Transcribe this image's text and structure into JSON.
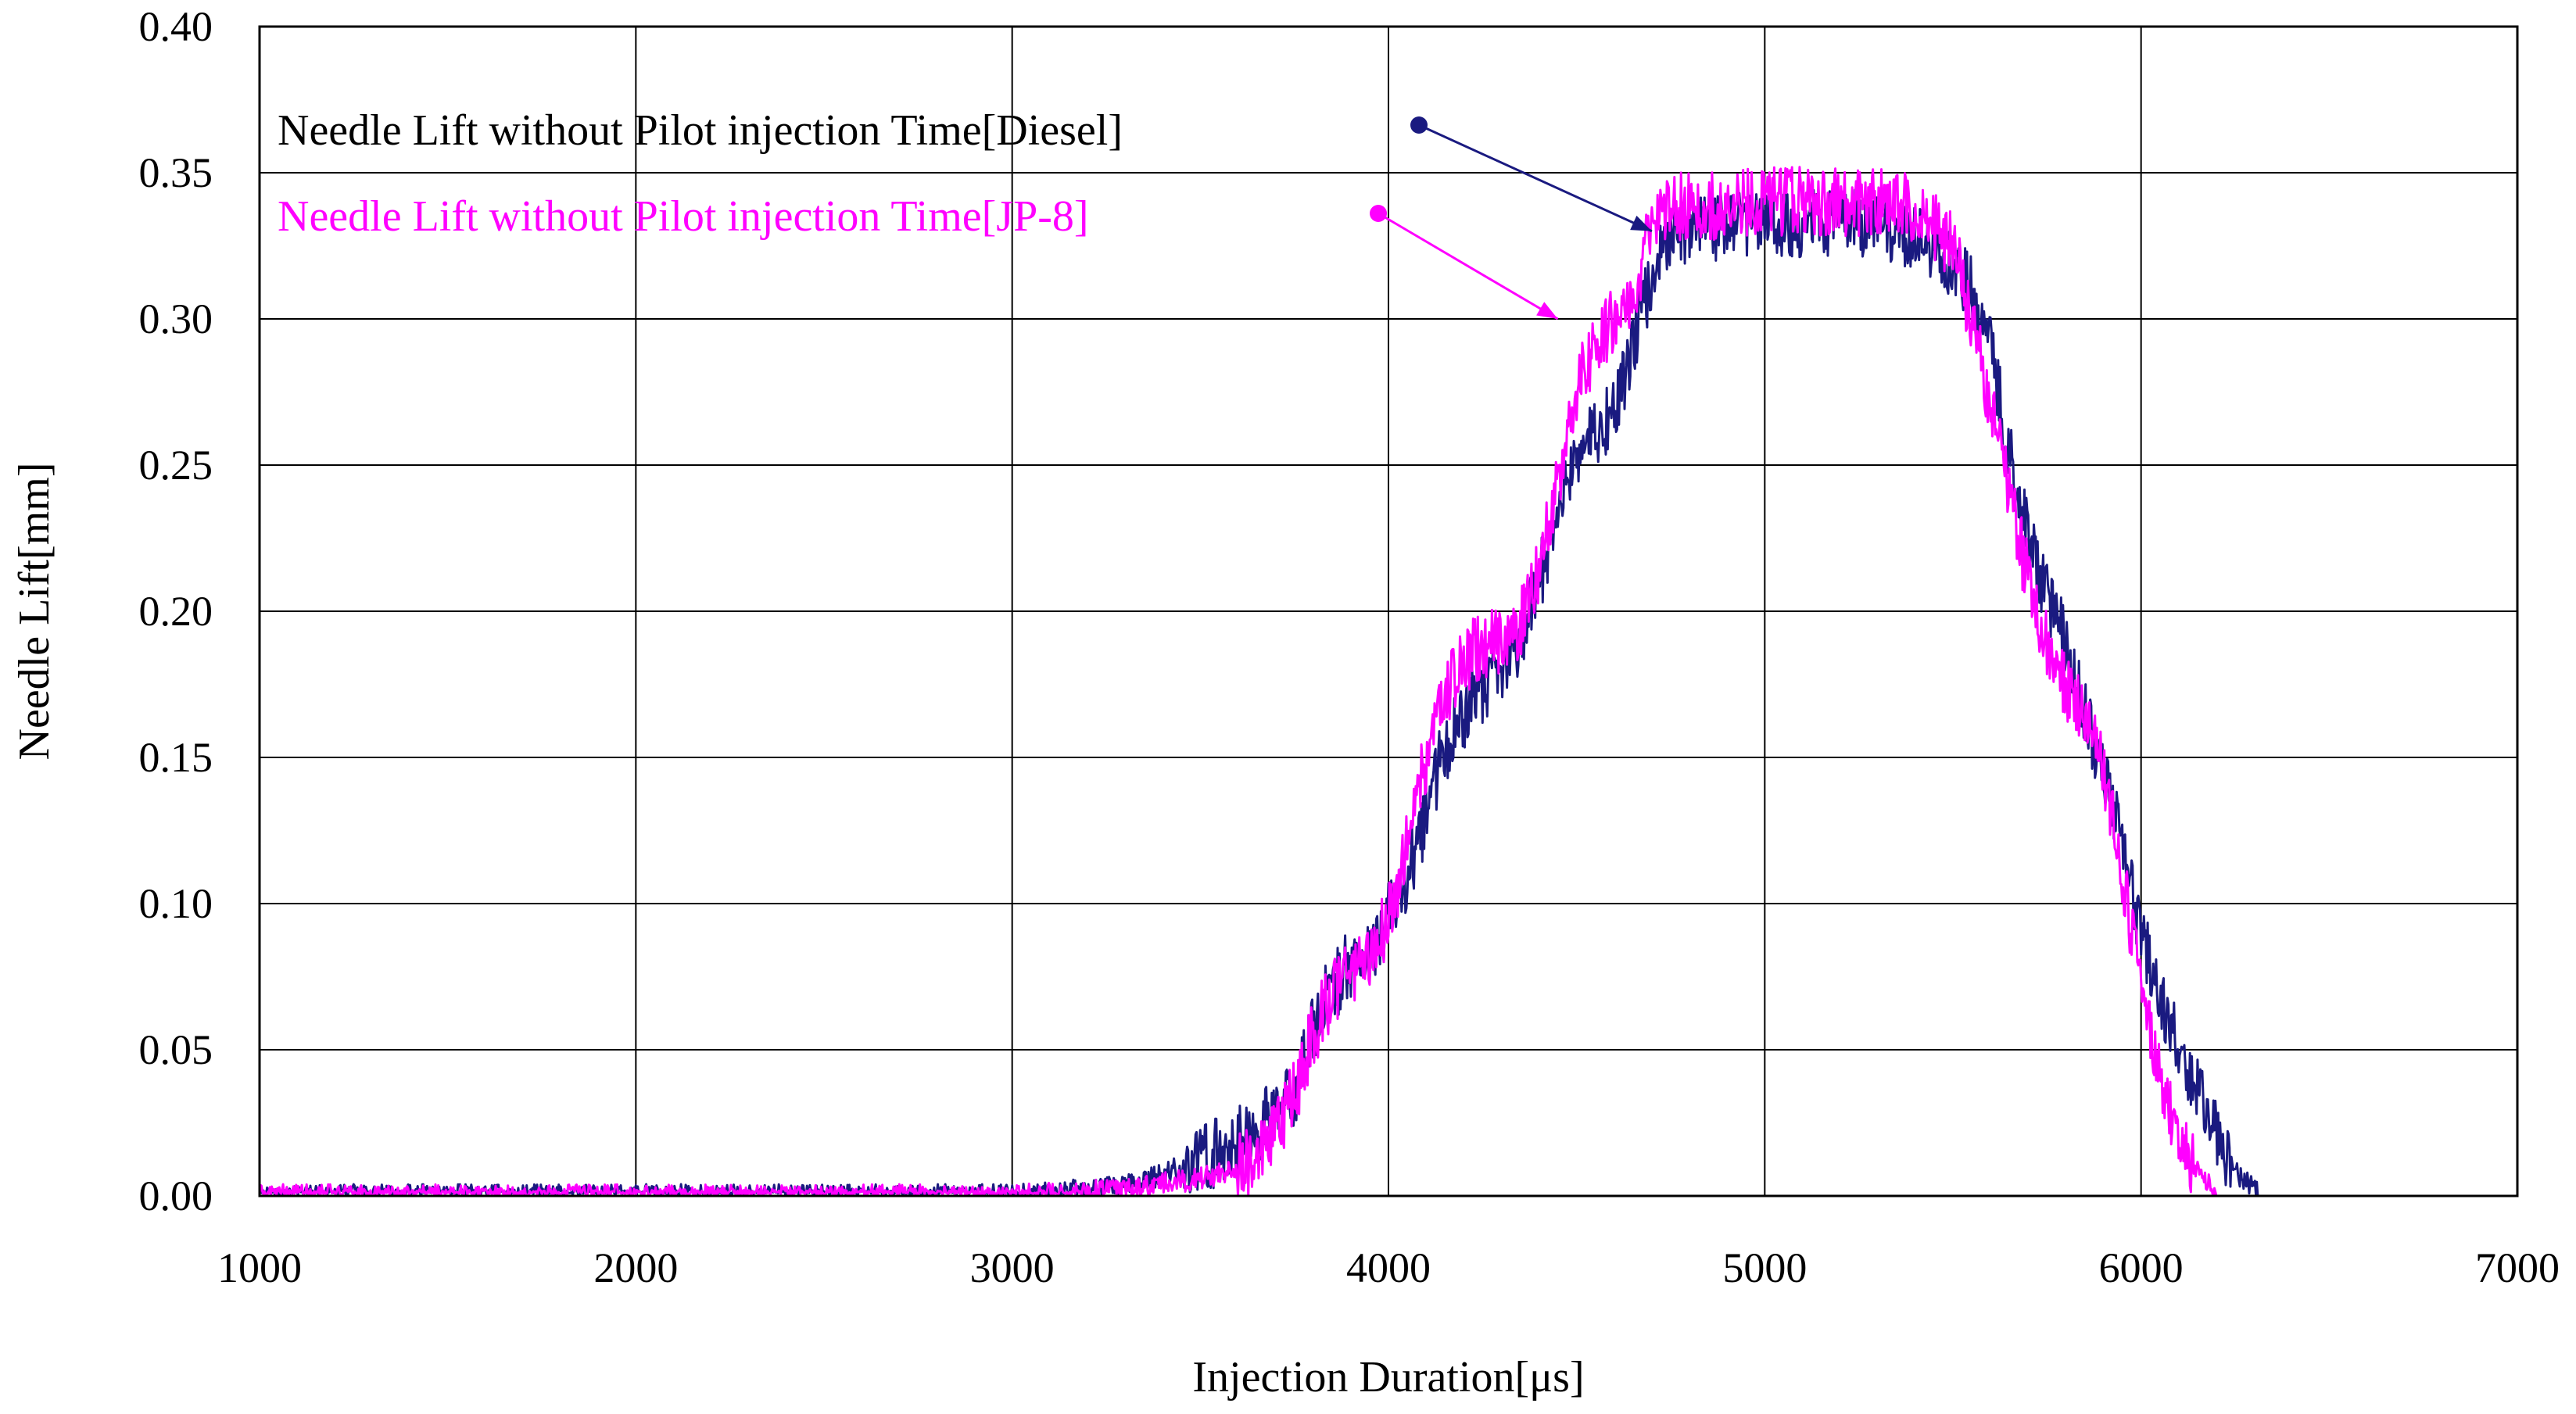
{
  "chart_data": {
    "type": "line",
    "title": "",
    "xlabel": "Injection Duration[μs]",
    "ylabel": "Needle Lift[mm]",
    "xlim": [
      1000,
      7000
    ],
    "ylim": [
      0,
      0.4
    ],
    "x_ticks": [
      "1000",
      "2000",
      "3000",
      "4000",
      "5000",
      "6000",
      "7000"
    ],
    "y_ticks": [
      "0.00",
      "0.05",
      "0.10",
      "0.15",
      "0.20",
      "0.25",
      "0.30",
      "0.35",
      "0.40"
    ],
    "grid": true,
    "noise": {
      "baseline": 0.004,
      "signal": 0.012
    },
    "series": [
      {
        "name": "Needle Lift without Pilot injection Time[Diesel]",
        "color": "#1a1a80",
        "x": [
          1000,
          2000,
          3000,
          3300,
          3500,
          3650,
          3750,
          3820,
          3900,
          3950,
          4000,
          4050,
          4100,
          4140,
          4200,
          4250,
          4300,
          4350,
          4400,
          4450,
          4500,
          4550,
          4600,
          4650,
          4700,
          4750,
          5000,
          5300,
          5450,
          5550,
          5600,
          5650,
          5700,
          5750,
          5800,
          5850,
          5900,
          5950,
          6000,
          6050,
          6100,
          6150,
          6200,
          6250,
          6300,
          6330
        ],
        "y": [
          0.0,
          0.0,
          0.0,
          0.003,
          0.012,
          0.022,
          0.035,
          0.065,
          0.08,
          0.082,
          0.095,
          0.11,
          0.13,
          0.15,
          0.165,
          0.172,
          0.178,
          0.19,
          0.21,
          0.235,
          0.255,
          0.26,
          0.268,
          0.29,
          0.315,
          0.33,
          0.333,
          0.333,
          0.325,
          0.31,
          0.29,
          0.255,
          0.225,
          0.205,
          0.19,
          0.165,
          0.145,
          0.12,
          0.09,
          0.07,
          0.05,
          0.035,
          0.02,
          0.008,
          0.002,
          0.0
        ]
      },
      {
        "name": "Needle Lift without Pilot injection Time[JP-8]",
        "color": "#ff00ff",
        "x": [
          1000,
          2000,
          3000,
          3300,
          3500,
          3650,
          3700,
          3750,
          3800,
          3850,
          3900,
          3950,
          4000,
          4050,
          4100,
          4150,
          4200,
          4250,
          4300,
          4350,
          4400,
          4450,
          4500,
          4550,
          4600,
          4650,
          4700,
          4750,
          5000,
          5300,
          5400,
          5500,
          5550,
          5600,
          5650,
          5700,
          5750,
          5800,
          5850,
          5900,
          5950,
          6000,
          6050,
          6100,
          6150,
          6200,
          6220
        ],
        "y": [
          0.0,
          0.0,
          0.0,
          0.002,
          0.006,
          0.012,
          0.02,
          0.035,
          0.055,
          0.07,
          0.078,
          0.08,
          0.095,
          0.12,
          0.15,
          0.172,
          0.183,
          0.188,
          0.19,
          0.195,
          0.215,
          0.245,
          0.275,
          0.292,
          0.3,
          0.31,
          0.33,
          0.338,
          0.34,
          0.34,
          0.338,
          0.325,
          0.3,
          0.27,
          0.24,
          0.21,
          0.19,
          0.175,
          0.165,
          0.145,
          0.11,
          0.07,
          0.04,
          0.02,
          0.008,
          0.001,
          0.0
        ]
      }
    ]
  },
  "legend": [
    {
      "label": "Needle Lift without Pilot injection Time[Diesel]",
      "color": "#1a1a80",
      "target": [
        4700,
        0.33
      ]
    },
    {
      "label": "Needle Lift without Pilot injection Time[JP-8]",
      "color": "#ff00ff",
      "target": [
        4450,
        0.3
      ]
    }
  ]
}
